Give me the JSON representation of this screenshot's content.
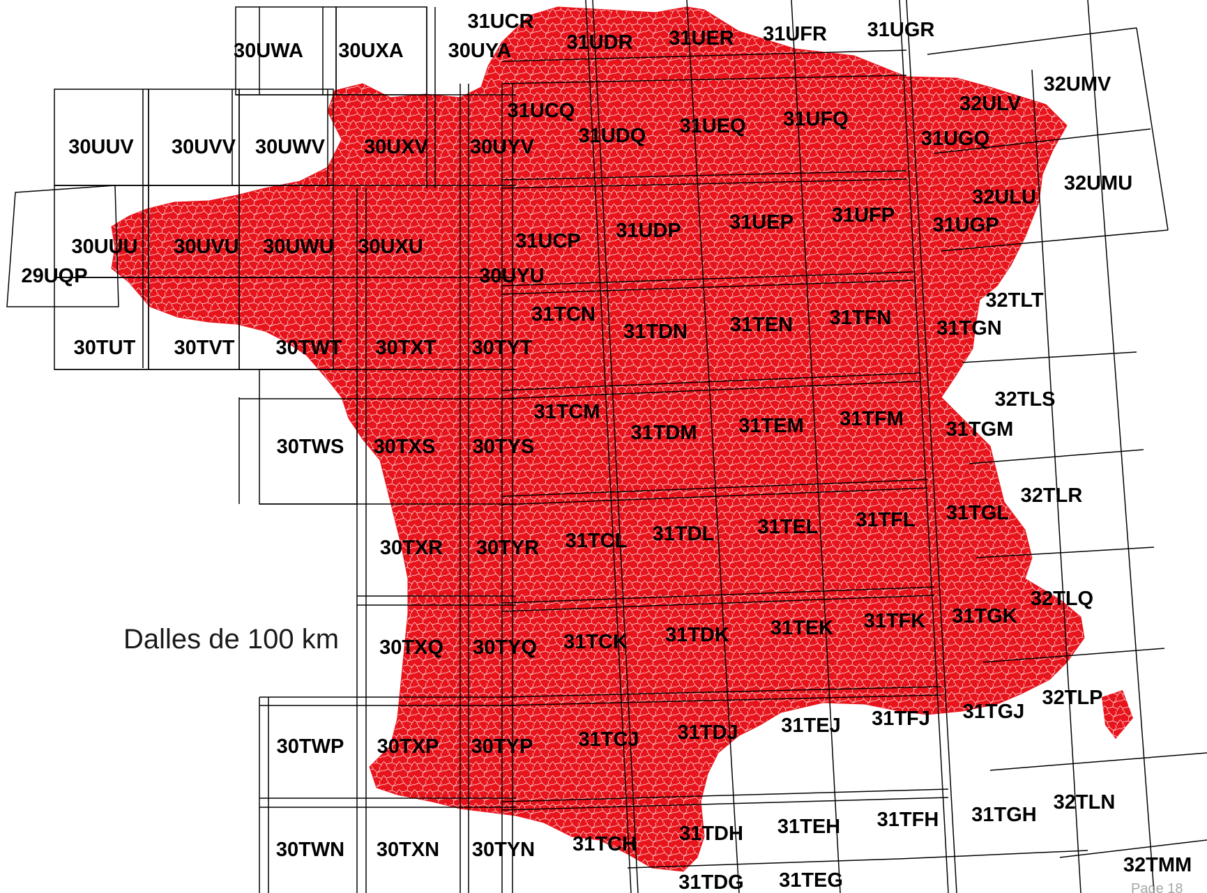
{
  "caption": "Dalles de 100 km",
  "page_number": "Page 18",
  "colors": {
    "land": "#e8141c",
    "communes": "#ffffff",
    "grid": "#000000",
    "label": "#000000"
  },
  "tiles": [
    {
      "id": "30UWA",
      "label": "30UWA"
    },
    {
      "id": "30UXA",
      "label": "30UXA"
    },
    {
      "id": "30UYA",
      "label": "30UYA"
    },
    {
      "id": "31UCR",
      "label": "31UCR"
    },
    {
      "id": "31UDR",
      "label": "31UDR"
    },
    {
      "id": "31UER",
      "label": "31UER"
    },
    {
      "id": "31UFR",
      "label": "31UFR"
    },
    {
      "id": "31UGR",
      "label": "31UGR"
    },
    {
      "id": "32ULV",
      "label": "32ULV"
    },
    {
      "id": "32UMV",
      "label": "32UMV"
    },
    {
      "id": "30UUV",
      "label": "30UUV"
    },
    {
      "id": "30UVV",
      "label": "30UVV"
    },
    {
      "id": "30UWV",
      "label": "30UWV"
    },
    {
      "id": "30UXV",
      "label": "30UXV"
    },
    {
      "id": "30UYV",
      "label": "30UYV"
    },
    {
      "id": "31UCQ",
      "label": "31UCQ"
    },
    {
      "id": "31UDQ",
      "label": "31UDQ"
    },
    {
      "id": "31UEQ",
      "label": "31UEQ"
    },
    {
      "id": "31UFQ",
      "label": "31UFQ"
    },
    {
      "id": "31UGQ",
      "label": "31UGQ"
    },
    {
      "id": "32ULU",
      "label": "32ULU"
    },
    {
      "id": "32UMU",
      "label": "32UMU"
    },
    {
      "id": "30UUU",
      "label": "30UUU"
    },
    {
      "id": "30UVU",
      "label": "30UVU"
    },
    {
      "id": "30UWU",
      "label": "30UWU"
    },
    {
      "id": "30UXU",
      "label": "30UXU"
    },
    {
      "id": "31UCP",
      "label": "31UCP"
    },
    {
      "id": "31UDP",
      "label": "31UDP"
    },
    {
      "id": "31UEP",
      "label": "31UEP"
    },
    {
      "id": "31UFP",
      "label": "31UFP"
    },
    {
      "id": "31UGP",
      "label": "31UGP"
    },
    {
      "id": "29UQP",
      "label": "29UQP"
    },
    {
      "id": "30UYU",
      "label": "30UYU"
    },
    {
      "id": "32TLT",
      "label": "32TLT"
    },
    {
      "id": "30TUT",
      "label": "30TUT"
    },
    {
      "id": "30TVT",
      "label": "30TVT"
    },
    {
      "id": "30TWT",
      "label": "30TWT"
    },
    {
      "id": "30TXT",
      "label": "30TXT"
    },
    {
      "id": "30TYT",
      "label": "30TYT"
    },
    {
      "id": "31TCN",
      "label": "31TCN"
    },
    {
      "id": "31TDN",
      "label": "31TDN"
    },
    {
      "id": "31TEN",
      "label": "31TEN"
    },
    {
      "id": "31TFN",
      "label": "31TFN"
    },
    {
      "id": "31TGN",
      "label": "31TGN"
    },
    {
      "id": "32TLS",
      "label": "32TLS"
    },
    {
      "id": "30TWS",
      "label": "30TWS"
    },
    {
      "id": "30TXS",
      "label": "30TXS"
    },
    {
      "id": "30TYS",
      "label": "30TYS"
    },
    {
      "id": "31TCM",
      "label": "31TCM"
    },
    {
      "id": "31TDM",
      "label": "31TDM"
    },
    {
      "id": "31TEM",
      "label": "31TEM"
    },
    {
      "id": "31TFM",
      "label": "31TFM"
    },
    {
      "id": "31TGM",
      "label": "31TGM"
    },
    {
      "id": "32TLR",
      "label": "32TLR"
    },
    {
      "id": "30TXR",
      "label": "30TXR"
    },
    {
      "id": "30TYR",
      "label": "30TYR"
    },
    {
      "id": "31TCL",
      "label": "31TCL"
    },
    {
      "id": "31TDL",
      "label": "31TDL"
    },
    {
      "id": "31TEL",
      "label": "31TEL"
    },
    {
      "id": "31TFL",
      "label": "31TFL"
    },
    {
      "id": "31TGL",
      "label": "31TGL"
    },
    {
      "id": "32TLQ",
      "label": "32TLQ"
    },
    {
      "id": "30TXQ",
      "label": "30TXQ"
    },
    {
      "id": "30TYQ",
      "label": "30TYQ"
    },
    {
      "id": "31TCK",
      "label": "31TCK"
    },
    {
      "id": "31TDK",
      "label": "31TDK"
    },
    {
      "id": "31TEK",
      "label": "31TEK"
    },
    {
      "id": "31TFK",
      "label": "31TFK"
    },
    {
      "id": "31TGK",
      "label": "31TGK"
    },
    {
      "id": "32TLP",
      "label": "32TLP"
    },
    {
      "id": "30TWP",
      "label": "30TWP"
    },
    {
      "id": "30TXP",
      "label": "30TXP"
    },
    {
      "id": "30TYP",
      "label": "30TYP"
    },
    {
      "id": "31TCJ",
      "label": "31TCJ"
    },
    {
      "id": "31TDJ",
      "label": "31TDJ"
    },
    {
      "id": "31TEJ",
      "label": "31TEJ"
    },
    {
      "id": "31TFJ",
      "label": "31TFJ"
    },
    {
      "id": "31TGJ",
      "label": "31TGJ"
    },
    {
      "id": "32TLN",
      "label": "32TLN"
    },
    {
      "id": "30TWN",
      "label": "30TWN"
    },
    {
      "id": "30TXN",
      "label": "30TXN"
    },
    {
      "id": "30TYN",
      "label": "30TYN"
    },
    {
      "id": "31TCH",
      "label": "31TCH"
    },
    {
      "id": "31TDH",
      "label": "31TDH"
    },
    {
      "id": "31TEH",
      "label": "31TEH"
    },
    {
      "id": "31TFH",
      "label": "31TFH"
    },
    {
      "id": "31TGH",
      "label": "31TGH"
    },
    {
      "id": "32TMM",
      "label": "32TMM"
    },
    {
      "id": "31TDG",
      "label": "31TDG"
    },
    {
      "id": "31TEG",
      "label": "31TEG"
    }
  ]
}
